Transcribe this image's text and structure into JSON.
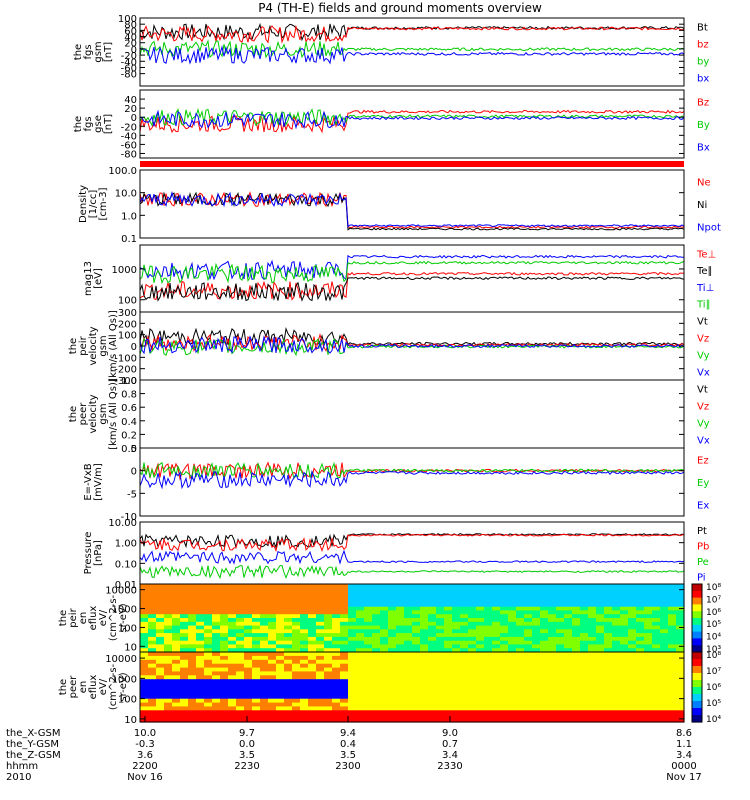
{
  "title": "P4 (TH-E) fields and ground moments overview",
  "colors": {
    "black": "#000000",
    "red": "#ff0000",
    "green": "#00cc00",
    "blue": "#0000ff"
  },
  "chart_data": [
    {
      "id": "fgs_gsm",
      "type": "line",
      "ylabel": [
        "the",
        "fgs",
        "gsm",
        "[nT]"
      ],
      "ylim": [
        -120,
        100
      ],
      "ticks": [
        "100",
        "80",
        "60",
        "40",
        "20",
        "0",
        "-20",
        "-40",
        "-60",
        "-80"
      ],
      "tick_values": [
        100,
        80,
        60,
        40,
        20,
        0,
        -20,
        -40,
        -60,
        -80
      ],
      "series": [
        {
          "name": "Bt",
          "color": "black",
          "base": 55,
          "calm": 68
        },
        {
          "name": "bz",
          "color": "red",
          "base": 48,
          "calm": 66
        },
        {
          "name": "by",
          "color": "green",
          "base": 0,
          "calm": -1
        },
        {
          "name": "bx",
          "color": "blue",
          "base": -20,
          "calm": -16
        }
      ]
    },
    {
      "id": "fgs_gse",
      "type": "line",
      "ylabel": [
        "the",
        "fgs",
        "gse",
        "[nT]"
      ],
      "ylim": [
        -90,
        60
      ],
      "ticks": [
        "40",
        "20",
        "0",
        "-20",
        "-40",
        "-60",
        "-80"
      ],
      "tick_values": [
        40,
        20,
        0,
        -20,
        -40,
        -60,
        -80
      ],
      "series": [
        {
          "name": "Bz",
          "color": "red",
          "base": -15,
          "calm": 12
        },
        {
          "name": "By",
          "color": "green",
          "base": 0,
          "calm": 2
        },
        {
          "name": "Bx",
          "color": "blue",
          "base": -5,
          "calm": -2
        }
      ]
    },
    {
      "id": "density",
      "type": "line",
      "log": true,
      "ylabel": [
        "Density",
        "[1/cc]",
        "[cm-3]"
      ],
      "ylim": [
        0.1,
        100
      ],
      "ticks": [
        "100.0",
        "10.0",
        "1.0",
        "0.1"
      ],
      "tick_values": [
        100,
        10,
        1,
        0.1
      ],
      "series": [
        {
          "name": "Ne",
          "color": "red",
          "base": 5,
          "calm": 0.3
        },
        {
          "name": "Ni",
          "color": "black",
          "base": 5,
          "calm": 0.25
        },
        {
          "name": "Npot",
          "color": "blue",
          "base": 5,
          "calm": 0.35
        }
      ]
    },
    {
      "id": "temperature",
      "type": "line",
      "log": true,
      "ylabel": [
        "mag13",
        "[eV]"
      ],
      "ylim": [
        40,
        6000
      ],
      "ticks": [
        "1000",
        "100"
      ],
      "tick_values": [
        1000,
        100
      ],
      "series": [
        {
          "name": "Te⊥",
          "color": "red",
          "base": 200,
          "calm": 700
        },
        {
          "name": "Te∥",
          "color": "black",
          "base": 180,
          "calm": 500
        },
        {
          "name": "Ti⊥",
          "color": "blue",
          "base": 900,
          "calm": 2500
        },
        {
          "name": "Ti∥",
          "color": "green",
          "base": 700,
          "calm": 1600
        }
      ]
    },
    {
      "id": "velocity",
      "type": "line",
      "ylabel": [
        "the",
        "peir",
        "velocity",
        "gsm",
        "[km/s (All Qs)]"
      ],
      "ylim": [
        -300,
        300
      ],
      "ticks": [
        "300",
        "200",
        "100",
        "0",
        "-100",
        "-200",
        "-300"
      ],
      "tick_values": [
        300,
        200,
        100,
        0,
        -100,
        -200,
        -300
      ],
      "series": [
        {
          "name": "Vt",
          "color": "black",
          "base": 80,
          "calm": 20
        },
        {
          "name": "Vz",
          "color": "red",
          "base": 30,
          "calm": 10
        },
        {
          "name": "Vy",
          "color": "green",
          "base": -10,
          "calm": -5
        },
        {
          "name": "Vx",
          "color": "blue",
          "base": 10,
          "calm": 0
        }
      ]
    },
    {
      "id": "velocity_empty",
      "type": "line",
      "empty": true,
      "ylabel": [
        "the",
        "peer",
        "velocity",
        "gsm",
        "[km/s (All Qs)]"
      ],
      "ylim": [
        0,
        1
      ],
      "ticks": [
        "1.0",
        "0.8",
        "0.6",
        "0.4",
        "0.2",
        "0.0"
      ],
      "tick_values": [
        1,
        0.8,
        0.6,
        0.4,
        0.2,
        0
      ],
      "series": [
        {
          "name": "Vt",
          "color": "black"
        },
        {
          "name": "Vz",
          "color": "red"
        },
        {
          "name": "Vy",
          "color": "green"
        },
        {
          "name": "Vx",
          "color": "blue"
        }
      ]
    },
    {
      "id": "efield",
      "type": "line",
      "ylabel": [
        "E=-VxB",
        "[mV/m]"
      ],
      "ylim": [
        -10,
        5
      ],
      "ticks": [
        "5",
        "0",
        "-5",
        "-10"
      ],
      "tick_values": [
        5,
        0,
        -5,
        -10
      ],
      "series": [
        {
          "name": "Ez",
          "color": "red",
          "base": 0,
          "calm": 0
        },
        {
          "name": "Ey",
          "color": "green",
          "base": 0,
          "calm": 0
        },
        {
          "name": "Ex",
          "color": "blue",
          "base": -2,
          "calm": -0.5
        }
      ]
    },
    {
      "id": "pressure",
      "type": "line",
      "log": true,
      "ylabel": [
        "Pressure",
        "[nPa]"
      ],
      "ylim": [
        0.01,
        10
      ],
      "ticks": [
        "10.00",
        "1.00",
        "0.10",
        "0.01"
      ],
      "tick_values": [
        10,
        1,
        0.1,
        0.01
      ],
      "series": [
        {
          "name": "Pt",
          "color": "black",
          "base": 1.2,
          "calm": 2.5
        },
        {
          "name": "Pb",
          "color": "red",
          "base": 0.8,
          "calm": 2.3
        },
        {
          "name": "Pe",
          "color": "green",
          "base": 0.04,
          "calm": 0.04
        },
        {
          "name": "Pi",
          "color": "blue",
          "base": 0.2,
          "calm": 0.12
        }
      ]
    },
    {
      "id": "peir_spec",
      "type": "heatmap",
      "log": true,
      "ylabel": [
        "the",
        "peir",
        "en",
        "eflux",
        "eV/",
        "(cm^2-s-",
        "sr-eV)"
      ],
      "ylim": [
        5,
        20000
      ],
      "ticks": [
        "10000",
        "1000",
        "100",
        "10"
      ],
      "tick_values": [
        10000,
        1000,
        100,
        10
      ],
      "colorbar": {
        "labels": [
          "10⁸",
          "10⁷",
          "10⁶",
          "10⁵",
          "10⁴",
          "10³"
        ],
        "range": [
          1000,
          100000000
        ]
      }
    },
    {
      "id": "peer_spec",
      "type": "heatmap",
      "log": true,
      "ylabel": [
        "the",
        "peer",
        "en",
        "eflux",
        "eV/",
        "(cm^2-s-",
        "sr-eV)"
      ],
      "ylim": [
        7,
        20000
      ],
      "ticks": [
        "10000",
        "1000",
        "100",
        "10"
      ],
      "tick_values": [
        10000,
        1000,
        100,
        10
      ],
      "colorbar": {
        "labels": [
          "10⁸",
          "10⁷",
          "10⁶",
          "10⁵",
          "10⁴"
        ],
        "range": [
          10000,
          100000000
        ]
      }
    }
  ],
  "time_axis": {
    "row_labels": [
      "the_X-GSM",
      "the_Y-GSM",
      "the_Z-GSM",
      "hhmm",
      "2010"
    ],
    "columns": [
      {
        "x": [
          "10.0",
          "-0.3",
          "3.6",
          "2200",
          "Nov 16"
        ]
      },
      {
        "x": [
          "9.7",
          "0.0",
          "3.5",
          "2230",
          ""
        ]
      },
      {
        "x": [
          "9.4",
          "0.4",
          "3.5",
          "2300",
          ""
        ]
      },
      {
        "x": [
          "9.0",
          "0.7",
          "3.4",
          "2330",
          ""
        ]
      },
      {
        "x": [
          "8.6",
          "1.1",
          "3.4",
          "0000",
          "Nov 17"
        ]
      }
    ]
  }
}
